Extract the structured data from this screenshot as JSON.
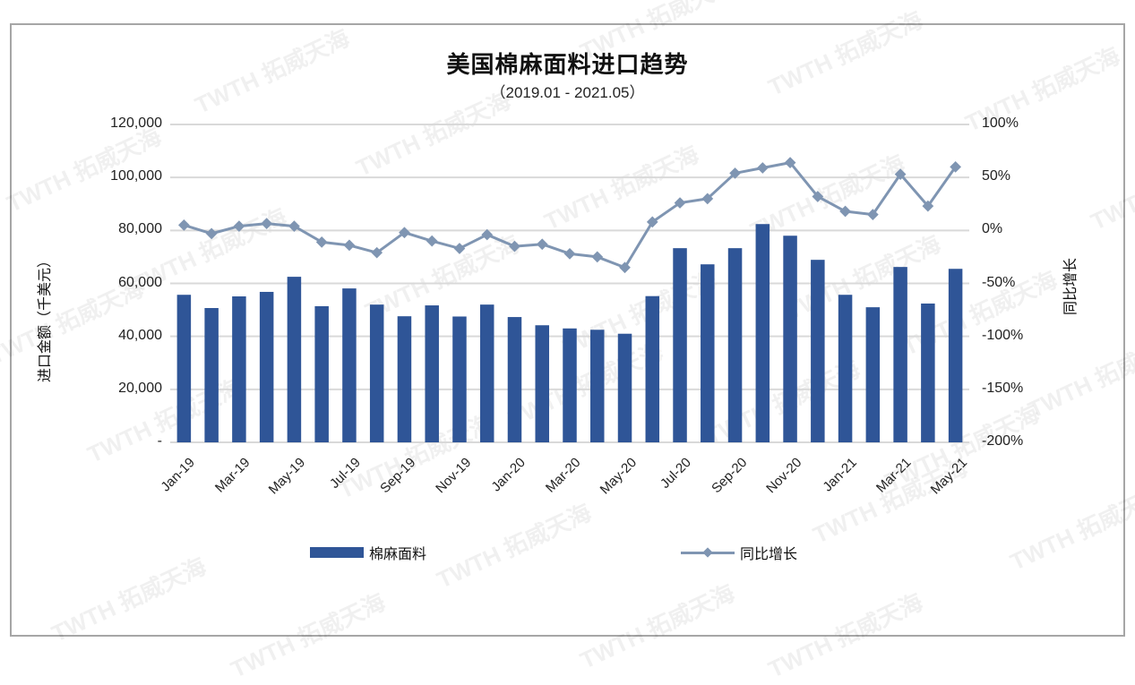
{
  "chart_data": {
    "type": "bar+line",
    "title": "美国棉麻面料进口趋势",
    "subtitle": "（2019.01 - 2021.05）",
    "xlabel": "",
    "ylabel": "进口金额（千美元）",
    "y2label": "同比增长",
    "ylim": [
      0,
      120000
    ],
    "y2lim": [
      -200,
      100
    ],
    "grid": true,
    "legend_position": "bottom",
    "categories": [
      "Jan-19",
      "Feb-19",
      "Mar-19",
      "Apr-19",
      "May-19",
      "Jun-19",
      "Jul-19",
      "Aug-19",
      "Sep-19",
      "Oct-19",
      "Nov-19",
      "Dec-19",
      "Jan-20",
      "Feb-20",
      "Mar-20",
      "Apr-20",
      "May-20",
      "Jun-20",
      "Jul-20",
      "Aug-20",
      "Sep-20",
      "Oct-20",
      "Nov-20",
      "Dec-20",
      "Jan-21",
      "Feb-21",
      "Mar-21",
      "Apr-21",
      "May-21"
    ],
    "x_tick_labels": [
      "Jan-19",
      "Mar-19",
      "May-19",
      "Jul-19",
      "Sep-19",
      "Nov-19",
      "Jan-20",
      "Mar-20",
      "May-20",
      "Jul-20",
      "Sep-20",
      "Nov-20",
      "Jan-21",
      "Mar-21",
      "May-21"
    ],
    "y_tick_labels": [
      "-",
      "20,000",
      "40,000",
      "60,000",
      "80,000",
      "100,000",
      "120,000"
    ],
    "y2_tick_labels": [
      "-200%",
      "-150%",
      "-100%",
      "-50%",
      "0%",
      "50%",
      "100%"
    ],
    "series": [
      {
        "name": "棉麻面料",
        "type": "bar",
        "axis": "left",
        "color": "#2f5597",
        "values": [
          55700,
          50700,
          55100,
          56800,
          62500,
          51400,
          58100,
          52000,
          47600,
          51700,
          47500,
          52000,
          47300,
          44200,
          43000,
          42500,
          41000,
          55200,
          73300,
          67200,
          73300,
          82400,
          78000,
          68900,
          55700,
          51000,
          66200,
          52400,
          65500
        ]
      },
      {
        "name": "同比增长",
        "type": "line",
        "axis": "right",
        "unit": "%",
        "color": "#7f95b2",
        "marker": "diamond",
        "values": [
          5,
          -3,
          4,
          6.5,
          4,
          -11,
          -14,
          -21,
          -2,
          -10,
          -17,
          -4,
          -15,
          -13,
          -22,
          -25,
          -35,
          8,
          26,
          30,
          54,
          59,
          64,
          32,
          18,
          15,
          53,
          23,
          60
        ]
      }
    ]
  },
  "watermark": "TWTH 拓威天海"
}
